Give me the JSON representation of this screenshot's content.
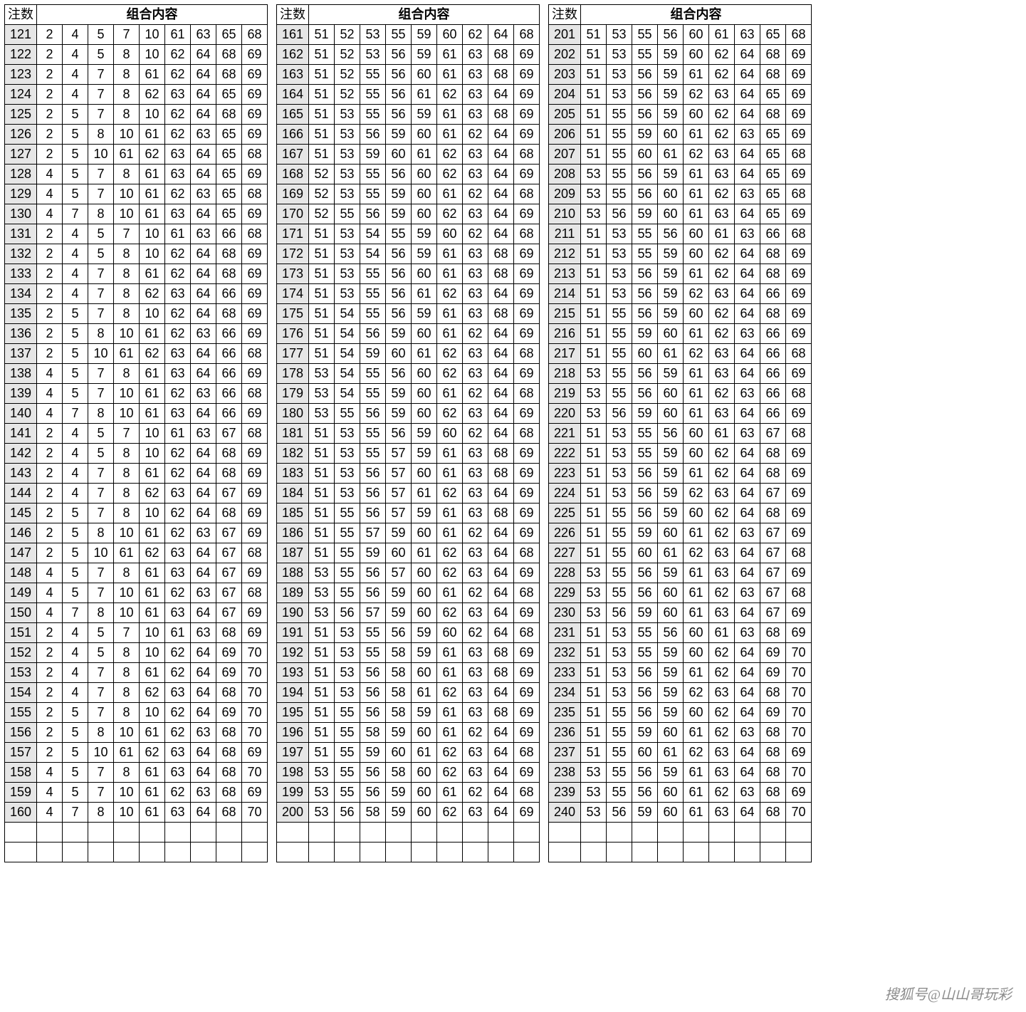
{
  "header": {
    "index_label": "注数",
    "combo_label": "组合内容"
  },
  "watermark": "搜狐号@山山哥玩彩",
  "ncols": 9,
  "blocks": [
    {
      "start": 121,
      "rows": [
        [
          2,
          4,
          5,
          7,
          10,
          61,
          63,
          65,
          68
        ],
        [
          2,
          4,
          5,
          8,
          10,
          62,
          64,
          68,
          69
        ],
        [
          2,
          4,
          7,
          8,
          61,
          62,
          64,
          68,
          69
        ],
        [
          2,
          4,
          7,
          8,
          62,
          63,
          64,
          65,
          69
        ],
        [
          2,
          5,
          7,
          8,
          10,
          62,
          64,
          68,
          69
        ],
        [
          2,
          5,
          8,
          10,
          61,
          62,
          63,
          65,
          69
        ],
        [
          2,
          5,
          10,
          61,
          62,
          63,
          64,
          65,
          68
        ],
        [
          4,
          5,
          7,
          8,
          61,
          63,
          64,
          65,
          69
        ],
        [
          4,
          5,
          7,
          10,
          61,
          62,
          63,
          65,
          68
        ],
        [
          4,
          7,
          8,
          10,
          61,
          63,
          64,
          65,
          69
        ],
        [
          2,
          4,
          5,
          7,
          10,
          61,
          63,
          66,
          68
        ],
        [
          2,
          4,
          5,
          8,
          10,
          62,
          64,
          68,
          69
        ],
        [
          2,
          4,
          7,
          8,
          61,
          62,
          64,
          68,
          69
        ],
        [
          2,
          4,
          7,
          8,
          62,
          63,
          64,
          66,
          69
        ],
        [
          2,
          5,
          7,
          8,
          10,
          62,
          64,
          68,
          69
        ],
        [
          2,
          5,
          8,
          10,
          61,
          62,
          63,
          66,
          69
        ],
        [
          2,
          5,
          10,
          61,
          62,
          63,
          64,
          66,
          68
        ],
        [
          4,
          5,
          7,
          8,
          61,
          63,
          64,
          66,
          69
        ],
        [
          4,
          5,
          7,
          10,
          61,
          62,
          63,
          66,
          68
        ],
        [
          4,
          7,
          8,
          10,
          61,
          63,
          64,
          66,
          69
        ],
        [
          2,
          4,
          5,
          7,
          10,
          61,
          63,
          67,
          68
        ],
        [
          2,
          4,
          5,
          8,
          10,
          62,
          64,
          68,
          69
        ],
        [
          2,
          4,
          7,
          8,
          61,
          62,
          64,
          68,
          69
        ],
        [
          2,
          4,
          7,
          8,
          62,
          63,
          64,
          67,
          69
        ],
        [
          2,
          5,
          7,
          8,
          10,
          62,
          64,
          68,
          69
        ],
        [
          2,
          5,
          8,
          10,
          61,
          62,
          63,
          67,
          69
        ],
        [
          2,
          5,
          10,
          61,
          62,
          63,
          64,
          67,
          68
        ],
        [
          4,
          5,
          7,
          8,
          61,
          63,
          64,
          67,
          69
        ],
        [
          4,
          5,
          7,
          10,
          61,
          62,
          63,
          67,
          68
        ],
        [
          4,
          7,
          8,
          10,
          61,
          63,
          64,
          67,
          69
        ],
        [
          2,
          4,
          5,
          7,
          10,
          61,
          63,
          68,
          69
        ],
        [
          2,
          4,
          5,
          8,
          10,
          62,
          64,
          69,
          70
        ],
        [
          2,
          4,
          7,
          8,
          61,
          62,
          64,
          69,
          70
        ],
        [
          2,
          4,
          7,
          8,
          62,
          63,
          64,
          68,
          70
        ],
        [
          2,
          5,
          7,
          8,
          10,
          62,
          64,
          69,
          70
        ],
        [
          2,
          5,
          8,
          10,
          61,
          62,
          63,
          68,
          70
        ],
        [
          2,
          5,
          10,
          61,
          62,
          63,
          64,
          68,
          69
        ],
        [
          4,
          5,
          7,
          8,
          61,
          63,
          64,
          68,
          70
        ],
        [
          4,
          5,
          7,
          10,
          61,
          62,
          63,
          68,
          69
        ],
        [
          4,
          7,
          8,
          10,
          61,
          63,
          64,
          68,
          70
        ]
      ]
    },
    {
      "start": 161,
      "rows": [
        [
          51,
          52,
          53,
          55,
          59,
          60,
          62,
          64,
          68
        ],
        [
          51,
          52,
          53,
          56,
          59,
          61,
          63,
          68,
          69
        ],
        [
          51,
          52,
          55,
          56,
          60,
          61,
          63,
          68,
          69
        ],
        [
          51,
          52,
          55,
          56,
          61,
          62,
          63,
          64,
          69
        ],
        [
          51,
          53,
          55,
          56,
          59,
          61,
          63,
          68,
          69
        ],
        [
          51,
          53,
          56,
          59,
          60,
          61,
          62,
          64,
          69
        ],
        [
          51,
          53,
          59,
          60,
          61,
          62,
          63,
          64,
          68
        ],
        [
          52,
          53,
          55,
          56,
          60,
          62,
          63,
          64,
          69
        ],
        [
          52,
          53,
          55,
          59,
          60,
          61,
          62,
          64,
          68
        ],
        [
          52,
          55,
          56,
          59,
          60,
          62,
          63,
          64,
          69
        ],
        [
          51,
          53,
          54,
          55,
          59,
          60,
          62,
          64,
          68
        ],
        [
          51,
          53,
          54,
          56,
          59,
          61,
          63,
          68,
          69
        ],
        [
          51,
          53,
          55,
          56,
          60,
          61,
          63,
          68,
          69
        ],
        [
          51,
          53,
          55,
          56,
          61,
          62,
          63,
          64,
          69
        ],
        [
          51,
          54,
          55,
          56,
          59,
          61,
          63,
          68,
          69
        ],
        [
          51,
          54,
          56,
          59,
          60,
          61,
          62,
          64,
          69
        ],
        [
          51,
          54,
          59,
          60,
          61,
          62,
          63,
          64,
          68
        ],
        [
          53,
          54,
          55,
          56,
          60,
          62,
          63,
          64,
          69
        ],
        [
          53,
          54,
          55,
          59,
          60,
          61,
          62,
          64,
          68
        ],
        [
          53,
          55,
          56,
          59,
          60,
          62,
          63,
          64,
          69
        ],
        [
          51,
          53,
          55,
          56,
          59,
          60,
          62,
          64,
          68
        ],
        [
          51,
          53,
          55,
          57,
          59,
          61,
          63,
          68,
          69
        ],
        [
          51,
          53,
          56,
          57,
          60,
          61,
          63,
          68,
          69
        ],
        [
          51,
          53,
          56,
          57,
          61,
          62,
          63,
          64,
          69
        ],
        [
          51,
          55,
          56,
          57,
          59,
          61,
          63,
          68,
          69
        ],
        [
          51,
          55,
          57,
          59,
          60,
          61,
          62,
          64,
          69
        ],
        [
          51,
          55,
          59,
          60,
          61,
          62,
          63,
          64,
          68
        ],
        [
          53,
          55,
          56,
          57,
          60,
          62,
          63,
          64,
          69
        ],
        [
          53,
          55,
          56,
          59,
          60,
          61,
          62,
          64,
          68
        ],
        [
          53,
          56,
          57,
          59,
          60,
          62,
          63,
          64,
          69
        ],
        [
          51,
          53,
          55,
          56,
          59,
          60,
          62,
          64,
          68
        ],
        [
          51,
          53,
          55,
          58,
          59,
          61,
          63,
          68,
          69
        ],
        [
          51,
          53,
          56,
          58,
          60,
          61,
          63,
          68,
          69
        ],
        [
          51,
          53,
          56,
          58,
          61,
          62,
          63,
          64,
          69
        ],
        [
          51,
          55,
          56,
          58,
          59,
          61,
          63,
          68,
          69
        ],
        [
          51,
          55,
          58,
          59,
          60,
          61,
          62,
          64,
          69
        ],
        [
          51,
          55,
          59,
          60,
          61,
          62,
          63,
          64,
          68
        ],
        [
          53,
          55,
          56,
          58,
          60,
          62,
          63,
          64,
          69
        ],
        [
          53,
          55,
          56,
          59,
          60,
          61,
          62,
          64,
          68
        ],
        [
          53,
          56,
          58,
          59,
          60,
          62,
          63,
          64,
          69
        ]
      ]
    },
    {
      "start": 201,
      "rows": [
        [
          51,
          53,
          55,
          56,
          60,
          61,
          63,
          65,
          68
        ],
        [
          51,
          53,
          55,
          59,
          60,
          62,
          64,
          68,
          69
        ],
        [
          51,
          53,
          56,
          59,
          61,
          62,
          64,
          68,
          69
        ],
        [
          51,
          53,
          56,
          59,
          62,
          63,
          64,
          65,
          69
        ],
        [
          51,
          55,
          56,
          59,
          60,
          62,
          64,
          68,
          69
        ],
        [
          51,
          55,
          59,
          60,
          61,
          62,
          63,
          65,
          69
        ],
        [
          51,
          55,
          60,
          61,
          62,
          63,
          64,
          65,
          68
        ],
        [
          53,
          55,
          56,
          59,
          61,
          63,
          64,
          65,
          69
        ],
        [
          53,
          55,
          56,
          60,
          61,
          62,
          63,
          65,
          68
        ],
        [
          53,
          56,
          59,
          60,
          61,
          63,
          64,
          65,
          69
        ],
        [
          51,
          53,
          55,
          56,
          60,
          61,
          63,
          66,
          68
        ],
        [
          51,
          53,
          55,
          59,
          60,
          62,
          64,
          68,
          69
        ],
        [
          51,
          53,
          56,
          59,
          61,
          62,
          64,
          68,
          69
        ],
        [
          51,
          53,
          56,
          59,
          62,
          63,
          64,
          66,
          69
        ],
        [
          51,
          55,
          56,
          59,
          60,
          62,
          64,
          68,
          69
        ],
        [
          51,
          55,
          59,
          60,
          61,
          62,
          63,
          66,
          69
        ],
        [
          51,
          55,
          60,
          61,
          62,
          63,
          64,
          66,
          68
        ],
        [
          53,
          55,
          56,
          59,
          61,
          63,
          64,
          66,
          69
        ],
        [
          53,
          55,
          56,
          60,
          61,
          62,
          63,
          66,
          68
        ],
        [
          53,
          56,
          59,
          60,
          61,
          63,
          64,
          66,
          69
        ],
        [
          51,
          53,
          55,
          56,
          60,
          61,
          63,
          67,
          68
        ],
        [
          51,
          53,
          55,
          59,
          60,
          62,
          64,
          68,
          69
        ],
        [
          51,
          53,
          56,
          59,
          61,
          62,
          64,
          68,
          69
        ],
        [
          51,
          53,
          56,
          59,
          62,
          63,
          64,
          67,
          69
        ],
        [
          51,
          55,
          56,
          59,
          60,
          62,
          64,
          68,
          69
        ],
        [
          51,
          55,
          59,
          60,
          61,
          62,
          63,
          67,
          69
        ],
        [
          51,
          55,
          60,
          61,
          62,
          63,
          64,
          67,
          68
        ],
        [
          53,
          55,
          56,
          59,
          61,
          63,
          64,
          67,
          69
        ],
        [
          53,
          55,
          56,
          60,
          61,
          62,
          63,
          67,
          68
        ],
        [
          53,
          56,
          59,
          60,
          61,
          63,
          64,
          67,
          69
        ],
        [
          51,
          53,
          55,
          56,
          60,
          61,
          63,
          68,
          69
        ],
        [
          51,
          53,
          55,
          59,
          60,
          62,
          64,
          69,
          70
        ],
        [
          51,
          53,
          56,
          59,
          61,
          62,
          64,
          69,
          70
        ],
        [
          51,
          53,
          56,
          59,
          62,
          63,
          64,
          68,
          70
        ],
        [
          51,
          55,
          56,
          59,
          60,
          62,
          64,
          69,
          70
        ],
        [
          51,
          55,
          59,
          60,
          61,
          62,
          63,
          68,
          70
        ],
        [
          51,
          55,
          60,
          61,
          62,
          63,
          64,
          68,
          69
        ],
        [
          53,
          55,
          56,
          59,
          61,
          63,
          64,
          68,
          70
        ],
        [
          53,
          55,
          56,
          60,
          61,
          62,
          63,
          68,
          69
        ],
        [
          53,
          56,
          59,
          60,
          61,
          63,
          64,
          68,
          70
        ]
      ]
    }
  ],
  "trailing_blank_rows": 2
}
